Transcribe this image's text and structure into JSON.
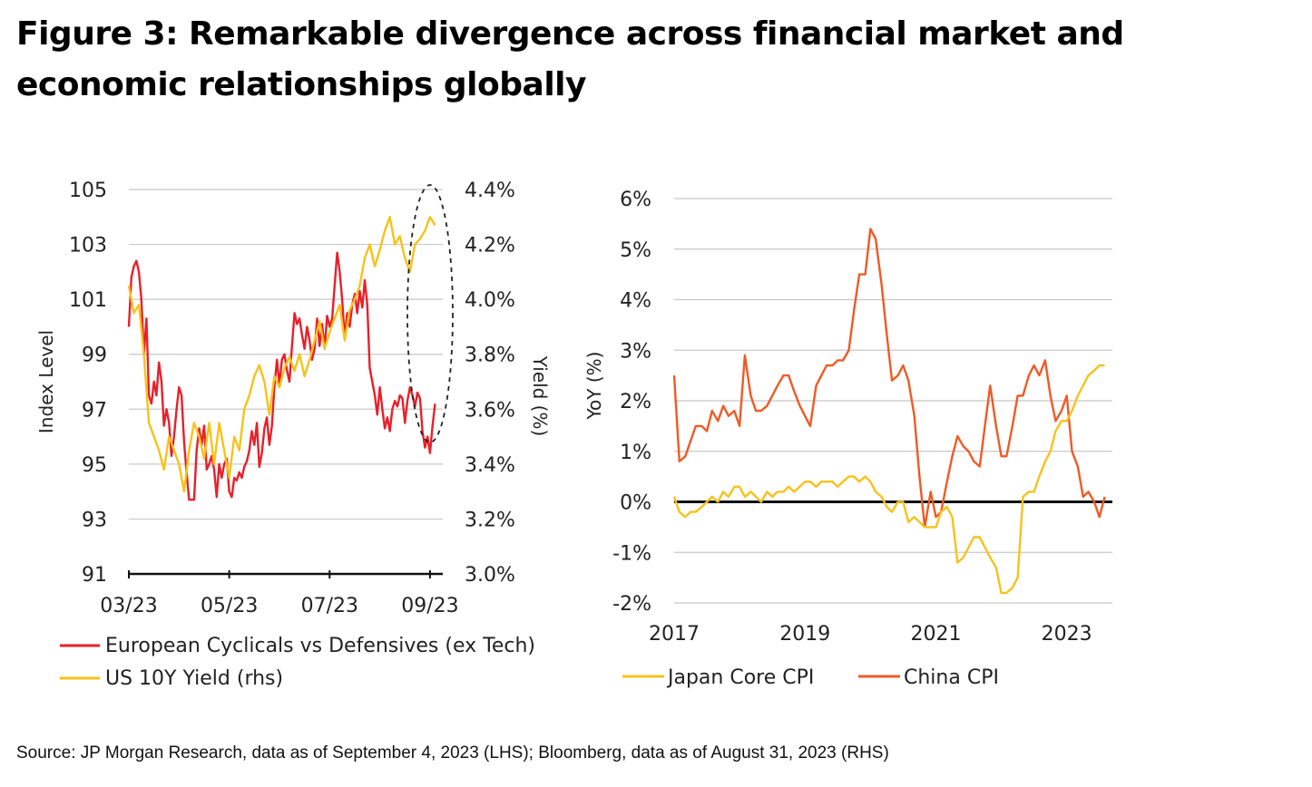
{
  "title": "Figure 3: Remarkable divergence across financial market and economic relationships globally",
  "source": "Source: JP Morgan Research, data as of September 4, 2023 (LHS); Bloomberg, data as of August 31, 2023 (RHS)",
  "colors": {
    "red": "#e8202a",
    "yellow": "#f7c21a",
    "orange": "#f05a24",
    "grid": "#c8c8c8"
  },
  "chart_data": [
    {
      "type": "line",
      "xlabel": "",
      "ylabel": "Index Level",
      "y2label": "Yield (%)",
      "ylim": [
        91,
        105
      ],
      "y2lim": [
        3.0,
        4.4
      ],
      "yticks": [
        "105",
        "103",
        "101",
        "99",
        "97",
        "95",
        "93",
        "91"
      ],
      "y2ticks": [
        "4.4%",
        "4.2%",
        "4.0%",
        "3.8%",
        "3.6%",
        "3.4%",
        "3.2%",
        "3.0%"
      ],
      "xlim": [
        0,
        6.2
      ],
      "xtick_labels": [
        "03/23",
        "05/23",
        "07/23",
        "09/23"
      ],
      "xtick_positions": [
        0,
        2,
        4,
        6
      ],
      "annotation": "dashed ellipse around latest divergence (late Aug – early Sep 2023)",
      "series": [
        {
          "name": "European Cyclicals vs Defensives (ex Tech)",
          "axis": "left",
          "x": [
            0,
            0.05,
            0.1,
            0.15,
            0.2,
            0.25,
            0.3,
            0.35,
            0.4,
            0.45,
            0.5,
            0.55,
            0.6,
            0.65,
            0.7,
            0.75,
            0.8,
            0.85,
            0.9,
            0.95,
            1.0,
            1.05,
            1.1,
            1.15,
            1.2,
            1.25,
            1.3,
            1.35,
            1.4,
            1.45,
            1.5,
            1.55,
            1.6,
            1.65,
            1.7,
            1.75,
            1.8,
            1.85,
            1.9,
            1.95,
            2.0,
            2.05,
            2.1,
            2.15,
            2.2,
            2.25,
            2.3,
            2.35,
            2.4,
            2.45,
            2.5,
            2.55,
            2.6,
            2.65,
            2.7,
            2.75,
            2.8,
            2.85,
            2.9,
            2.95,
            3.0,
            3.05,
            3.1,
            3.15,
            3.2,
            3.25,
            3.3,
            3.35,
            3.4,
            3.45,
            3.5,
            3.55,
            3.6,
            3.65,
            3.7,
            3.75,
            3.8,
            3.85,
            3.9,
            3.95,
            4.0,
            4.05,
            4.1,
            4.15,
            4.2,
            4.25,
            4.3,
            4.35,
            4.4,
            4.45,
            4.5,
            4.55,
            4.6,
            4.65,
            4.7,
            4.75,
            4.8,
            4.85,
            4.9,
            4.95,
            5.0,
            5.05,
            5.1,
            5.15,
            5.2,
            5.25,
            5.3,
            5.35,
            5.4,
            5.45,
            5.5,
            5.55,
            5.6,
            5.65,
            5.7,
            5.75,
            5.8,
            5.85,
            5.9,
            5.95,
            6.0,
            6.05,
            6.1
          ],
          "values": [
            100.0,
            101.8,
            102.2,
            102.4,
            102.0,
            101.0,
            99.0,
            100.3,
            97.5,
            97.2,
            98.0,
            97.5,
            98.7,
            98.0,
            96.4,
            97.0,
            96.5,
            95.3,
            96.0,
            97.0,
            97.8,
            97.5,
            95.8,
            94.7,
            93.7,
            93.7,
            93.7,
            95.5,
            96.3,
            95.7,
            96.4,
            94.8,
            95.0,
            95.3,
            94.8,
            93.8,
            95.0,
            94.5,
            95.0,
            95.2,
            94.0,
            93.8,
            94.5,
            94.4,
            94.7,
            94.5,
            94.9,
            95.1,
            95.5,
            96.2,
            95.7,
            96.5,
            94.9,
            95.4,
            96.3,
            96.7,
            95.7,
            96.4,
            97.8,
            98.8,
            97.9,
            98.8,
            99.0,
            98.4,
            98.0,
            99.3,
            100.5,
            100.1,
            100.3,
            99.7,
            99.2,
            100.0,
            99.5,
            98.8,
            99.2,
            100.3,
            99.3,
            100.1,
            99.2,
            100.4,
            100.0,
            100.3,
            101.5,
            102.7,
            102.0,
            101.0,
            99.6,
            100.5,
            100.0,
            100.8,
            101.2,
            100.5,
            101.3,
            100.7,
            101.7,
            100.8,
            98.5,
            98.0,
            97.5,
            96.8,
            97.8,
            97.0,
            96.3,
            96.7,
            96.2,
            97.0,
            97.3,
            97.1,
            97.5,
            97.4,
            96.5,
            97.3,
            97.8,
            97.5,
            97.1,
            97.6,
            97.4,
            96.2,
            95.6,
            96.0,
            95.4,
            96.4,
            97.2
          ],
          "values_note": "second half sampled sparser to align with x"
        },
        {
          "name": "US 10Y Yield (rhs)",
          "axis": "right",
          "x": [
            0,
            0.1,
            0.2,
            0.3,
            0.4,
            0.5,
            0.6,
            0.7,
            0.8,
            0.9,
            1.0,
            1.1,
            1.2,
            1.3,
            1.4,
            1.5,
            1.6,
            1.7,
            1.8,
            1.9,
            2.0,
            2.1,
            2.2,
            2.3,
            2.4,
            2.5,
            2.6,
            2.7,
            2.8,
            2.9,
            3.0,
            3.1,
            3.2,
            3.3,
            3.4,
            3.5,
            3.6,
            3.7,
            3.8,
            3.9,
            4.0,
            4.1,
            4.2,
            4.3,
            4.4,
            4.5,
            4.6,
            4.7,
            4.8,
            4.9,
            5.0,
            5.1,
            5.2,
            5.3,
            5.4,
            5.5,
            5.6,
            5.7,
            5.8,
            5.9,
            6.0,
            6.1
          ],
          "values": [
            4.05,
            3.95,
            3.98,
            3.8,
            3.55,
            3.5,
            3.45,
            3.38,
            3.5,
            3.45,
            3.4,
            3.3,
            3.45,
            3.55,
            3.5,
            3.42,
            3.55,
            3.4,
            3.55,
            3.45,
            3.35,
            3.5,
            3.45,
            3.6,
            3.65,
            3.72,
            3.76,
            3.7,
            3.58,
            3.72,
            3.68,
            3.75,
            3.79,
            3.74,
            3.8,
            3.72,
            3.78,
            3.85,
            3.92,
            3.82,
            3.88,
            3.93,
            3.98,
            3.85,
            3.96,
            4.0,
            4.05,
            4.15,
            4.2,
            4.12,
            4.18,
            4.25,
            4.3,
            4.2,
            4.23,
            4.15,
            4.1,
            4.2,
            4.22,
            4.25,
            4.3,
            4.27
          ]
        }
      ]
    },
    {
      "type": "line",
      "xlabel": "",
      "ylabel": "YoY (%)",
      "ylim": [
        -2,
        6
      ],
      "yticks": [
        "6%",
        "5%",
        "4%",
        "3%",
        "2%",
        "1%",
        "0%",
        "-1%",
        "-2%"
      ],
      "xlim": [
        2017,
        2023.67
      ],
      "xtick_labels": [
        "2017",
        "2019",
        "2021",
        "2023"
      ],
      "xtick_positions": [
        2017,
        2019,
        2021,
        2023
      ],
      "series": [
        {
          "name": "Japan Core CPI",
          "x": [
            2017.0,
            2017.08,
            2017.17,
            2017.25,
            2017.33,
            2017.42,
            2017.5,
            2017.58,
            2017.67,
            2017.75,
            2017.83,
            2017.92,
            2018.0,
            2018.08,
            2018.17,
            2018.25,
            2018.33,
            2018.42,
            2018.5,
            2018.58,
            2018.67,
            2018.75,
            2018.83,
            2018.92,
            2019.0,
            2019.08,
            2019.17,
            2019.25,
            2019.33,
            2019.42,
            2019.5,
            2019.58,
            2019.67,
            2019.75,
            2019.83,
            2019.92,
            2020.0,
            2020.08,
            2020.17,
            2020.25,
            2020.33,
            2020.42,
            2020.5,
            2020.58,
            2020.67,
            2020.75,
            2020.83,
            2020.92,
            2021.0,
            2021.08,
            2021.17,
            2021.25,
            2021.33,
            2021.42,
            2021.5,
            2021.58,
            2021.67,
            2021.75,
            2021.83,
            2021.92,
            2022.0,
            2022.08,
            2022.17,
            2022.25,
            2022.33,
            2022.42,
            2022.5,
            2022.58,
            2022.67,
            2022.75,
            2022.83,
            2022.92,
            2023.0,
            2023.08,
            2023.17,
            2023.25,
            2023.33,
            2023.42,
            2023.5,
            2023.58
          ],
          "values": [
            0.1,
            -0.2,
            -0.3,
            -0.2,
            -0.2,
            -0.1,
            0.0,
            0.1,
            0.0,
            0.2,
            0.1,
            0.3,
            0.3,
            0.1,
            0.2,
            0.1,
            0.0,
            0.2,
            0.1,
            0.2,
            0.2,
            0.3,
            0.2,
            0.3,
            0.4,
            0.4,
            0.3,
            0.4,
            0.4,
            0.4,
            0.3,
            0.4,
            0.5,
            0.5,
            0.4,
            0.5,
            0.4,
            0.2,
            0.1,
            -0.1,
            -0.2,
            0.0,
            0.0,
            -0.4,
            -0.3,
            -0.4,
            -0.5,
            -0.5,
            -0.5,
            -0.2,
            -0.1,
            -0.3,
            -1.2,
            -1.1,
            -0.9,
            -0.7,
            -0.7,
            -0.9,
            -1.1,
            -1.3,
            -1.8,
            -1.8,
            -1.7,
            -1.5,
            0.1,
            0.2,
            0.2,
            0.5,
            0.8,
            1.0,
            1.4,
            1.6,
            1.6,
            1.8,
            2.1,
            2.3,
            2.5,
            2.6,
            2.7,
            2.7
          ]
        },
        {
          "name": "China CPI",
          "x": [
            2017.0,
            2017.08,
            2017.17,
            2017.25,
            2017.33,
            2017.42,
            2017.5,
            2017.58,
            2017.67,
            2017.75,
            2017.83,
            2017.92,
            2018.0,
            2018.08,
            2018.17,
            2018.25,
            2018.33,
            2018.42,
            2018.5,
            2018.58,
            2018.67,
            2018.75,
            2018.83,
            2018.92,
            2019.0,
            2019.08,
            2019.17,
            2019.25,
            2019.33,
            2019.42,
            2019.5,
            2019.58,
            2019.67,
            2019.75,
            2019.83,
            2019.92,
            2020.0,
            2020.08,
            2020.17,
            2020.25,
            2020.33,
            2020.42,
            2020.5,
            2020.58,
            2020.67,
            2020.75,
            2020.83,
            2020.92,
            2021.0,
            2021.08,
            2021.17,
            2021.25,
            2021.33,
            2021.42,
            2021.5,
            2021.58,
            2021.67,
            2021.75,
            2021.83,
            2021.92,
            2022.0,
            2022.08,
            2022.17,
            2022.25,
            2022.33,
            2022.42,
            2022.5,
            2022.58,
            2022.67,
            2022.75,
            2022.83,
            2022.92,
            2023.0,
            2023.08,
            2023.17,
            2023.25,
            2023.33,
            2023.42,
            2023.5,
            2023.58
          ],
          "values": [
            2.5,
            0.8,
            0.9,
            1.2,
            1.5,
            1.5,
            1.4,
            1.8,
            1.6,
            1.9,
            1.7,
            1.8,
            1.5,
            2.9,
            2.1,
            1.8,
            1.8,
            1.9,
            2.1,
            2.3,
            2.5,
            2.5,
            2.2,
            1.9,
            1.7,
            1.5,
            2.3,
            2.5,
            2.7,
            2.7,
            2.8,
            2.8,
            3.0,
            3.8,
            4.5,
            4.5,
            5.4,
            5.2,
            4.3,
            3.3,
            2.4,
            2.5,
            2.7,
            2.4,
            1.7,
            0.5,
            -0.5,
            0.2,
            -0.3,
            -0.2,
            0.4,
            0.9,
            1.3,
            1.1,
            1.0,
            0.8,
            0.7,
            1.5,
            2.3,
            1.5,
            0.9,
            0.9,
            1.5,
            2.1,
            2.1,
            2.5,
            2.7,
            2.5,
            2.8,
            2.1,
            1.6,
            1.8,
            2.1,
            1.0,
            0.7,
            0.1,
            0.2,
            0.0,
            -0.3,
            0.1
          ]
        }
      ]
    }
  ]
}
